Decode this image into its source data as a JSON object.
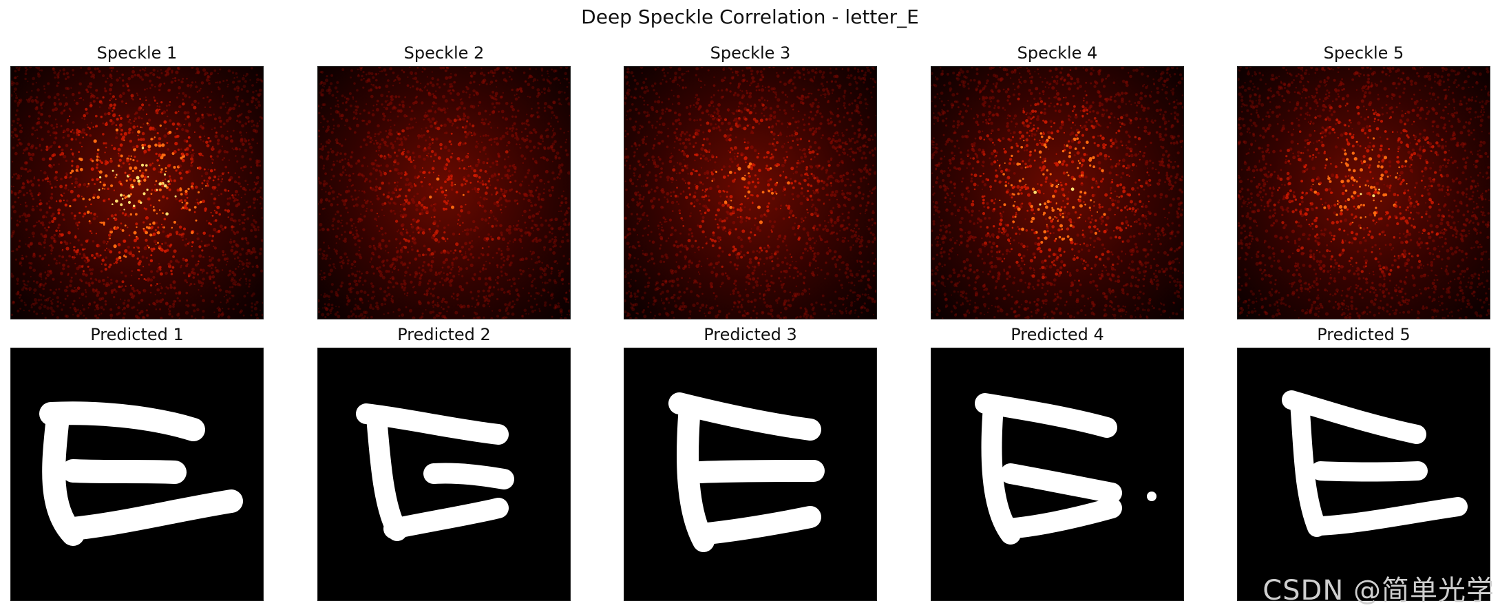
{
  "figure": {
    "title": "Deep Speckle Correlation - letter_E",
    "watermark": "CSDN @简单光学"
  },
  "speckles": [
    {
      "title": "Speckle 1",
      "brightness": 1.0
    },
    {
      "title": "Speckle 2",
      "brightness": 0.6
    },
    {
      "title": "Speckle 3",
      "brightness": 0.7
    },
    {
      "title": "Speckle 4",
      "brightness": 0.9
    },
    {
      "title": "Speckle 5",
      "brightness": 0.8
    }
  ],
  "predictions": [
    {
      "title": "Predicted 1",
      "shape": "letter E"
    },
    {
      "title": "Predicted 2",
      "shape": "letter E"
    },
    {
      "title": "Predicted 3",
      "shape": "letter E"
    },
    {
      "title": "Predicted 4",
      "shape": "letter E"
    },
    {
      "title": "Predicted 5",
      "shape": "letter E"
    }
  ],
  "colors": {
    "speckle_bg": "#1a0000",
    "speckle_mid": "#b01000",
    "speckle_hot": "#ffd040",
    "letter": "#ffffff"
  }
}
